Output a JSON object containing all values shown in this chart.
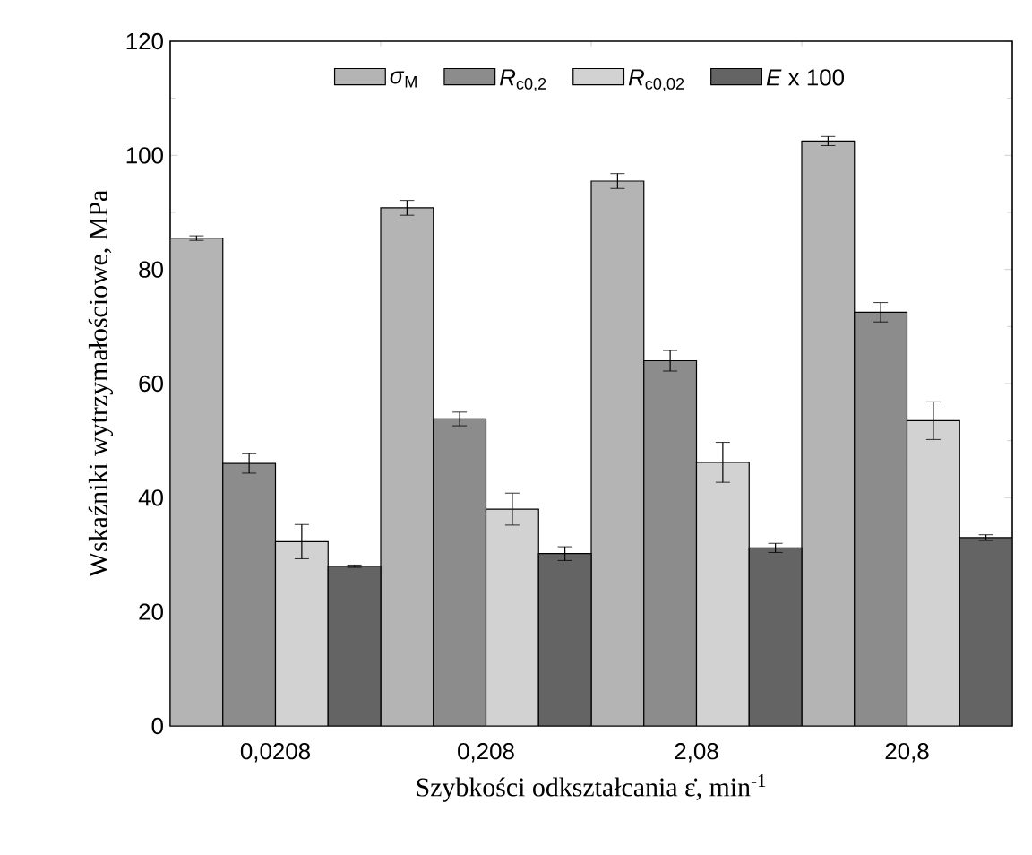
{
  "chart_data": {
    "type": "bar",
    "xlabel": "Szybkości odkształcania ε̇, min$^{-1}$",
    "ylabel": "Wskaźniki wytrzymałościowe, MPa",
    "categories": [
      "0,0208",
      "0,208",
      "2,08",
      "20,8"
    ],
    "series": [
      {
        "name": "*σ*$_{M}$",
        "color": "#b4b4b4",
        "values": [
          85.5,
          90.8,
          95.5,
          102.5
        ],
        "errors": [
          0.4,
          1.3,
          1.3,
          0.8
        ]
      },
      {
        "name": "*R*$_{c0,2}$",
        "color": "#8c8c8c",
        "values": [
          46,
          53.8,
          64,
          72.5
        ],
        "errors": [
          1.7,
          1.2,
          1.8,
          1.7
        ]
      },
      {
        "name": "*R*$_{c0,02}$",
        "color": "#d2d2d2",
        "values": [
          32.3,
          38,
          46.2,
          53.5
        ],
        "errors": [
          3,
          2.8,
          3.5,
          3.3
        ]
      },
      {
        "name": "*E* x 100",
        "color": "#646464",
        "values": [
          28,
          30.2,
          31.2,
          33
        ],
        "errors": [
          0.2,
          1.2,
          0.8,
          0.5
        ]
      }
    ],
    "ylim": [
      0,
      120
    ],
    "yticks": [
      0,
      20,
      40,
      60,
      80,
      100,
      120
    ],
    "grid": false,
    "legend": "top"
  }
}
